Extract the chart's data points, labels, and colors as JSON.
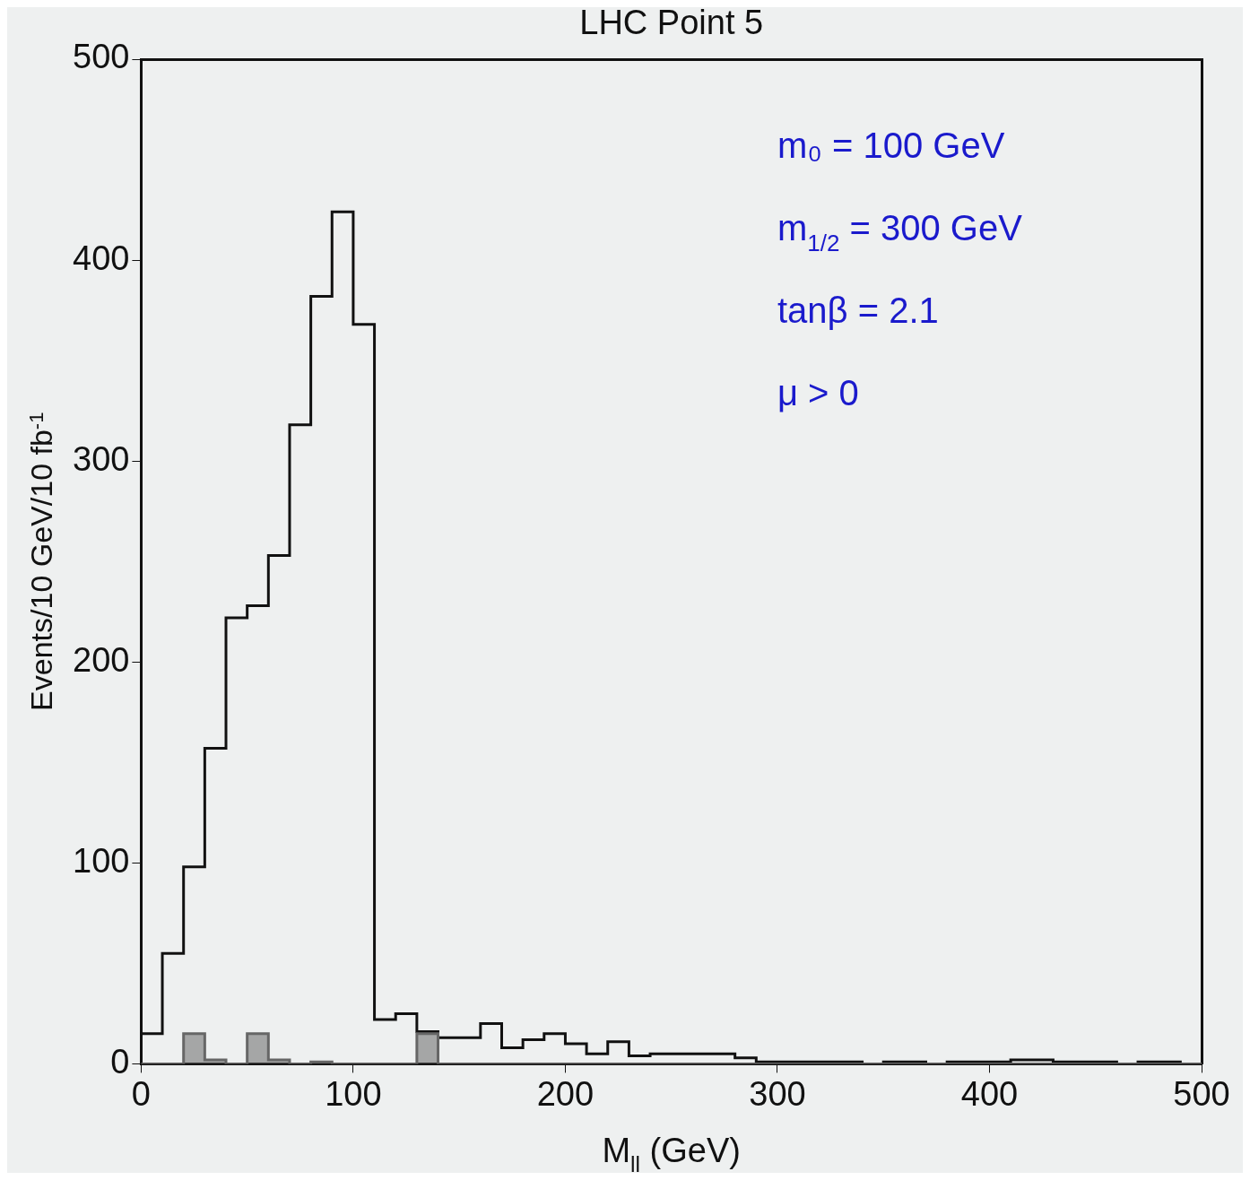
{
  "chart_data": {
    "type": "histogram",
    "title": "LHC Point 5",
    "xlabel": "M$_{ll}$ (GeV)",
    "ylabel": "Events/10 GeV/10 fb$^{-1}$",
    "bins": [
      0,
      10,
      20,
      30,
      40,
      50,
      60,
      70,
      80,
      90,
      100,
      110,
      120,
      130,
      140,
      150,
      160,
      170,
      180,
      190,
      200,
      210,
      220,
      230,
      240,
      250,
      260,
      270,
      280,
      290,
      300,
      310,
      320,
      330,
      340,
      350,
      360,
      370,
      380,
      390,
      400,
      410,
      420,
      430,
      440,
      450,
      460,
      470,
      480,
      490,
      500
    ],
    "series": [
      {
        "color": "#111111",
        "values": [
          15,
          55,
          98,
          157,
          222,
          228,
          253,
          318,
          382,
          424,
          368,
          22,
          25,
          16,
          13,
          13,
          20,
          8,
          12,
          15,
          10,
          5,
          11,
          4,
          5,
          5,
          5,
          5,
          3,
          1,
          1,
          1,
          1,
          1,
          0,
          1,
          1,
          0,
          1,
          1,
          1,
          2,
          2,
          1,
          1,
          1,
          0,
          1,
          1,
          0
        ]
      },
      {
        "color": "#666666",
        "values": [
          0,
          0,
          15,
          2,
          0,
          15,
          2,
          0,
          1,
          0,
          0,
          0,
          0,
          15,
          0,
          0,
          0,
          0,
          0,
          0,
          0,
          0,
          0,
          0,
          0,
          0,
          0,
          0,
          0,
          0,
          0,
          0,
          0,
          0,
          0,
          0,
          0,
          0,
          0,
          0,
          0,
          0,
          0,
          0,
          0,
          0,
          0,
          0,
          0,
          0
        ]
      }
    ],
    "xlim": [
      0,
      500
    ],
    "xticks": [
      0,
      100,
      200,
      300,
      400,
      500
    ],
    "ylim": [
      0,
      500
    ],
    "yticks": [
      0,
      100,
      200,
      300,
      400,
      500
    ],
    "grid": false,
    "legend": false,
    "annotations": [
      "m₀ = 100 GeV",
      "m$_{1/2}$ = 300 GeV",
      "tanβ = 2.1",
      "μ > 0"
    ]
  }
}
